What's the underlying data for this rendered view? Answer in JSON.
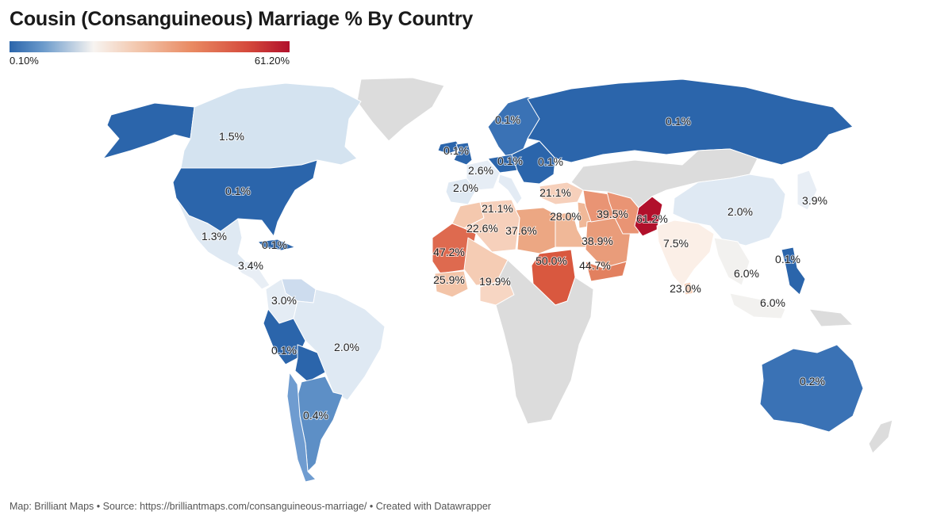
{
  "title": "Cousin (Consanguineous) Marriage % By Country",
  "legend": {
    "min_label": "0.10%",
    "max_label": "61.20%",
    "min_color": "#2b65ab",
    "max_color": "#b1102b"
  },
  "footer": "Map: Brilliant Maps • Source: https://brilliantmaps.com/consanguineous-marriage/ • Created with Datawrapper",
  "colors": {
    "no_data": "#dcdcdc",
    "ocean": "#ffffff"
  },
  "regions": [
    {
      "name": "Canada",
      "label": "1.5%",
      "color": "#d4e3f0"
    },
    {
      "name": "Alaska",
      "label": "",
      "color": "#2b65ab"
    },
    {
      "name": "Greenland",
      "label": "",
      "color": "#dcdcdc"
    },
    {
      "name": "United States",
      "label": "0.1%",
      "color": "#2b65ab"
    },
    {
      "name": "Mexico",
      "label": "1.3%",
      "color": "#dfe9f3"
    },
    {
      "name": "Cuba",
      "label": "0.1%",
      "color": "#2b65ab"
    },
    {
      "name": "Central America",
      "label": "3.4%",
      "color": "#e8eef5"
    },
    {
      "name": "Venezuela",
      "label": "",
      "color": "#cddcee"
    },
    {
      "name": "Colombia",
      "label": "3.0%",
      "color": "#e4ecf4"
    },
    {
      "name": "Brazil",
      "label": "2.0%",
      "color": "#dfe9f3"
    },
    {
      "name": "Peru",
      "label": "0.1%",
      "color": "#2b65ab"
    },
    {
      "name": "Bolivia",
      "label": "",
      "color": "#2b65ab"
    },
    {
      "name": "Argentina",
      "label": "0.4%",
      "color": "#5d8fc6"
    },
    {
      "name": "Chile",
      "label": "",
      "color": "#6f9cd0"
    },
    {
      "name": "Iceland",
      "label": "",
      "color": "#2b65ab"
    },
    {
      "name": "United Kingdom",
      "label": "0.1%",
      "color": "#2b65ab"
    },
    {
      "name": "Scandinavia",
      "label": "0.1%",
      "color": "#3a72b5"
    },
    {
      "name": "Germany",
      "label": "0.1%",
      "color": "#2b65ab"
    },
    {
      "name": "France",
      "label": "2.6%",
      "color": "#e6edf5"
    },
    {
      "name": "Spain",
      "label": "2.0%",
      "color": "#dfe9f3"
    },
    {
      "name": "Italy",
      "label": "",
      "color": "#e3ebf4"
    },
    {
      "name": "Eastern Europe",
      "label": "0.1%",
      "color": "#2b65ab"
    },
    {
      "name": "Russia",
      "label": "0.1%",
      "color": "#2b65ab"
    },
    {
      "name": "Turkey",
      "label": "21.1%",
      "color": "#f6d0bb"
    },
    {
      "name": "Algeria",
      "label": "21.1%",
      "color": "#f6d0bb"
    },
    {
      "name": "Morocco",
      "label": "",
      "color": "#f4c8ae"
    },
    {
      "name": "Mali",
      "label": "22.6%",
      "color": "#f5ccb4"
    },
    {
      "name": "Libya",
      "label": "37.6%",
      "color": "#eca783"
    },
    {
      "name": "Egypt",
      "label": "",
      "color": "#f0b898"
    },
    {
      "name": "Mauritania",
      "label": "47.2%",
      "color": "#de6a4f"
    },
    {
      "name": "Guinea",
      "label": "25.9%",
      "color": "#f3c4a8"
    },
    {
      "name": "Nigeria",
      "label": "19.9%",
      "color": "#f7d6c3"
    },
    {
      "name": "Sudan",
      "label": "50.0%",
      "color": "#d9583f"
    },
    {
      "name": "Israel",
      "label": "28.0%",
      "color": "#f0b898"
    },
    {
      "name": "Iraq",
      "label": "",
      "color": "#e99474"
    },
    {
      "name": "Iran",
      "label": "39.5%",
      "color": "#e99474"
    },
    {
      "name": "Saudi Arabia",
      "label": "38.9%",
      "color": "#e99c7a"
    },
    {
      "name": "Yemen",
      "label": "44.7%",
      "color": "#e2805f"
    },
    {
      "name": "Pakistan",
      "label": "61.2%",
      "color": "#b1102b"
    },
    {
      "name": "India",
      "label": "7.5%",
      "color": "#fbefe7"
    },
    {
      "name": "China",
      "label": "2.0%",
      "color": "#dfe9f3"
    },
    {
      "name": "Japan",
      "label": "3.9%",
      "color": "#e8eef5"
    },
    {
      "name": "Thailand",
      "label": "6.0%",
      "color": "#f2f1ef"
    },
    {
      "name": "Malaysia",
      "label": "6.0%",
      "color": "#f2f1ef"
    },
    {
      "name": "Sri Lanka",
      "label": "23.0%",
      "color": "#f5cbb2"
    },
    {
      "name": "Philippines",
      "label": "0.1%",
      "color": "#2b65ab"
    },
    {
      "name": "Australia",
      "label": "0.2%",
      "color": "#3a72b5"
    }
  ]
}
